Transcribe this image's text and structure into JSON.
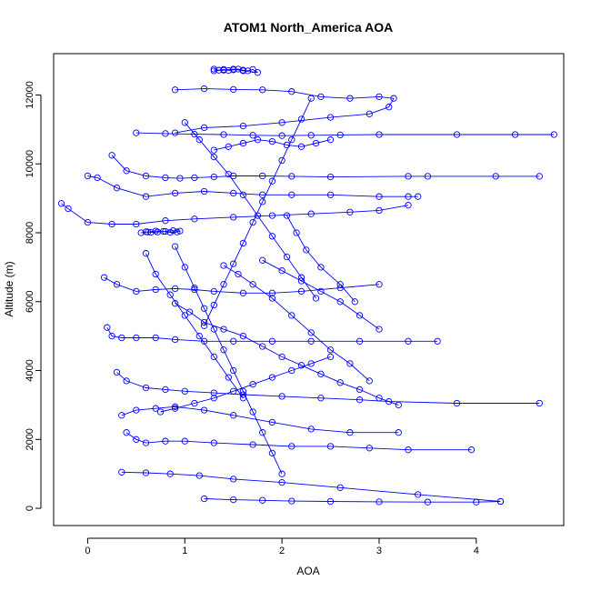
{
  "chart_data": {
    "type": "line",
    "title": "ATOM1 North_America AOA",
    "xlabel": "AOA",
    "ylabel": "Altitude (m)",
    "xlim": [
      -0.35,
      4.9
    ],
    "ylim": [
      -500,
      13200
    ],
    "x_ticks": [
      "0",
      "1",
      "2",
      "3",
      "4"
    ],
    "y_ticks": [
      "0",
      "2000",
      "4000",
      "6000",
      "8000",
      "10000",
      "12000"
    ],
    "x_tick_values": [
      0,
      1,
      2,
      3,
      4
    ],
    "y_tick_values": [
      0,
      2000,
      4000,
      6000,
      8000,
      10000,
      12000
    ],
    "grid": false,
    "legend": "none",
    "series_color": "#0000ff",
    "marker": "open-circle",
    "series": [
      {
        "x": [
          1.3,
          1.35,
          1.4,
          1.45,
          1.5,
          1.55,
          1.6,
          1.65,
          1.7,
          1.75,
          1.6,
          1.5,
          1.4,
          1.3
        ],
        "y": [
          12750,
          12720,
          12740,
          12710,
          12730,
          12750,
          12720,
          12700,
          12740,
          12650,
          12700,
          12750,
          12720,
          12700
        ]
      },
      {
        "x": [
          0.9,
          1.2,
          1.5,
          1.8,
          2.1,
          2.4,
          2.7,
          3.0,
          3.15,
          3.1,
          2.9,
          2.5,
          2.0,
          1.6,
          1.2,
          0.9
        ],
        "y": [
          12150,
          12180,
          12160,
          12150,
          12100,
          11950,
          11900,
          11950,
          11900,
          11650,
          11450,
          11350,
          11200,
          11100,
          11050,
          10900
        ]
      },
      {
        "x": [
          0.5,
          0.8,
          1.1,
          1.4,
          1.7,
          2.0,
          2.3,
          2.6,
          3.0,
          3.8,
          4.4,
          4.8
        ],
        "y": [
          10900,
          10880,
          10860,
          10850,
          10830,
          10820,
          10830,
          10840,
          10850,
          10850,
          10850,
          10850
        ]
      },
      {
        "x": [
          0.25,
          0.4,
          0.6,
          0.8,
          0.95,
          1.1,
          1.3,
          1.5,
          1.8,
          2.1,
          2.5,
          3.3,
          3.5,
          4.2,
          4.65
        ],
        "y": [
          10250,
          9800,
          9650,
          9600,
          9580,
          9600,
          9620,
          9650,
          9650,
          9640,
          9620,
          9640,
          9640,
          9640,
          9640
        ]
      },
      {
        "x": [
          0.0,
          0.1,
          0.3,
          0.6,
          0.9,
          1.2,
          1.5,
          1.8,
          2.1,
          2.5,
          3.0,
          3.3,
          3.4
        ],
        "y": [
          9650,
          9600,
          9300,
          9050,
          9150,
          9200,
          9150,
          9100,
          9100,
          9100,
          9050,
          9050,
          9050
        ]
      },
      {
        "x": [
          -0.27,
          -0.2,
          0.0,
          0.25,
          0.5,
          0.8,
          1.1,
          1.5,
          1.9,
          2.3,
          2.7,
          3.0,
          3.3
        ],
        "y": [
          8850,
          8700,
          8300,
          8250,
          8250,
          8350,
          8400,
          8450,
          8500,
          8550,
          8600,
          8650,
          8800
        ]
      },
      {
        "x": [
          0.55,
          0.62,
          0.7,
          0.78,
          0.85,
          0.92,
          0.95,
          0.88,
          0.8,
          0.72,
          0.65,
          0.6
        ],
        "y": [
          8000,
          8020,
          8050,
          8040,
          8010,
          8020,
          8050,
          8060,
          8040,
          8020,
          8010,
          8030
        ]
      },
      {
        "x": [
          0.17,
          0.3,
          0.5,
          0.7,
          0.9,
          1.1,
          1.3,
          1.6,
          1.9,
          2.2,
          2.6,
          3.0
        ],
        "y": [
          6700,
          6500,
          6300,
          6350,
          6380,
          6350,
          6300,
          6250,
          6250,
          6300,
          6400,
          6500
        ]
      },
      {
        "x": [
          0.2,
          0.25,
          0.35,
          0.5,
          0.7,
          0.9,
          1.2,
          1.5,
          1.9,
          2.3,
          2.8,
          3.3,
          3.6
        ],
        "y": [
          5250,
          5000,
          4950,
          4950,
          4950,
          4900,
          4850,
          4850,
          4850,
          4850,
          4850,
          4850,
          4850
        ]
      },
      {
        "x": [
          0.3,
          0.4,
          0.6,
          0.8,
          1.0,
          1.3,
          1.6,
          2.0,
          2.4,
          2.8,
          3.1,
          3.8,
          4.65
        ],
        "y": [
          3950,
          3700,
          3500,
          3450,
          3400,
          3350,
          3300,
          3250,
          3200,
          3150,
          3100,
          3050,
          3050
        ]
      },
      {
        "x": [
          0.35,
          0.5,
          0.7,
          0.9,
          1.2,
          1.5,
          1.9,
          2.3,
          2.7,
          3.2
        ],
        "y": [
          2700,
          2850,
          2900,
          2950,
          2850,
          2700,
          2500,
          2300,
          2200,
          2200
        ]
      },
      {
        "x": [
          0.4,
          0.5,
          0.6,
          0.8,
          1.0,
          1.3,
          1.7,
          2.1,
          2.5,
          2.9,
          3.3,
          3.95
        ],
        "y": [
          2200,
          2000,
          1900,
          1950,
          1950,
          1900,
          1850,
          1800,
          1800,
          1750,
          1700,
          1700
        ]
      },
      {
        "x": [
          0.35,
          0.6,
          0.85,
          1.15,
          1.5,
          2.0,
          2.6,
          3.4,
          4.25
        ],
        "y": [
          1050,
          1030,
          1000,
          950,
          850,
          750,
          600,
          400,
          200
        ]
      },
      {
        "x": [
          1.2,
          1.5,
          1.8,
          2.1,
          2.5,
          3.0,
          3.5,
          4.0,
          4.25
        ],
        "y": [
          280,
          250,
          230,
          210,
          200,
          190,
          180,
          180,
          200
        ]
      },
      {
        "x": [
          0.9,
          1.05,
          1.2,
          1.4,
          1.6,
          1.8,
          2.0,
          2.2,
          2.4,
          2.6,
          2.8,
          3.0,
          3.2
        ],
        "y": [
          5950,
          5700,
          5400,
          5200,
          5000,
          4700,
          4400,
          4150,
          3900,
          3650,
          3450,
          3200,
          3000
        ]
      },
      {
        "x": [
          1.4,
          1.55,
          1.7,
          1.9,
          2.1,
          2.3,
          2.5,
          2.7,
          2.9
        ],
        "y": [
          7050,
          6800,
          6500,
          6100,
          5600,
          5100,
          4600,
          4200,
          3700
        ]
      },
      {
        "x": [
          2.5,
          2.3,
          2.1,
          1.9,
          1.7,
          1.5,
          1.3,
          1.1,
          0.9,
          0.75
        ],
        "y": [
          4400,
          4200,
          4000,
          3800,
          3600,
          3400,
          3200,
          3050,
          2900,
          2800
        ]
      },
      {
        "x": [
          1.0,
          1.15,
          1.3,
          1.45,
          1.6,
          1.75,
          1.9,
          2.05,
          2.2,
          2.35
        ],
        "y": [
          11200,
          10700,
          10200,
          9700,
          9100,
          8500,
          7900,
          7300,
          6700,
          6100
        ]
      },
      {
        "x": [
          2.3,
          2.2,
          2.1,
          2.0,
          1.9,
          1.8,
          1.7,
          1.6,
          1.5,
          1.4,
          1.3,
          1.2
        ],
        "y": [
          11900,
          11300,
          10700,
          10100,
          9500,
          8900,
          8300,
          7700,
          7100,
          6500,
          5900,
          5300
        ]
      },
      {
        "x": [
          0.9,
          1.0,
          1.1,
          1.2,
          1.3,
          1.4,
          1.5,
          1.6,
          1.7,
          1.8,
          1.9,
          2.0
        ],
        "y": [
          7600,
          7000,
          6400,
          5800,
          5200,
          4600,
          4000,
          3400,
          2800,
          2200,
          1600,
          1000
        ]
      },
      {
        "x": [
          0.6,
          0.7,
          0.85,
          1.0,
          1.15,
          1.3,
          1.45,
          1.6
        ],
        "y": [
          7400,
          6800,
          6200,
          5600,
          5000,
          4400,
          3800,
          3200
        ]
      },
      {
        "x": [
          1.3,
          1.45,
          1.6,
          1.75,
          1.9,
          2.05,
          2.2,
          2.35,
          2.5
        ],
        "y": [
          10400,
          10500,
          10600,
          10700,
          10650,
          10550,
          10500,
          10600,
          10700
        ]
      },
      {
        "x": [
          2.05,
          2.15,
          2.25,
          2.4,
          2.6,
          2.75
        ],
        "y": [
          8500,
          8000,
          7500,
          7000,
          6500,
          6000
        ]
      },
      {
        "x": [
          1.8,
          2.0,
          2.2,
          2.4,
          2.6,
          2.8,
          3.0
        ],
        "y": [
          7200,
          6900,
          6600,
          6300,
          6000,
          5600,
          5200
        ]
      }
    ]
  }
}
